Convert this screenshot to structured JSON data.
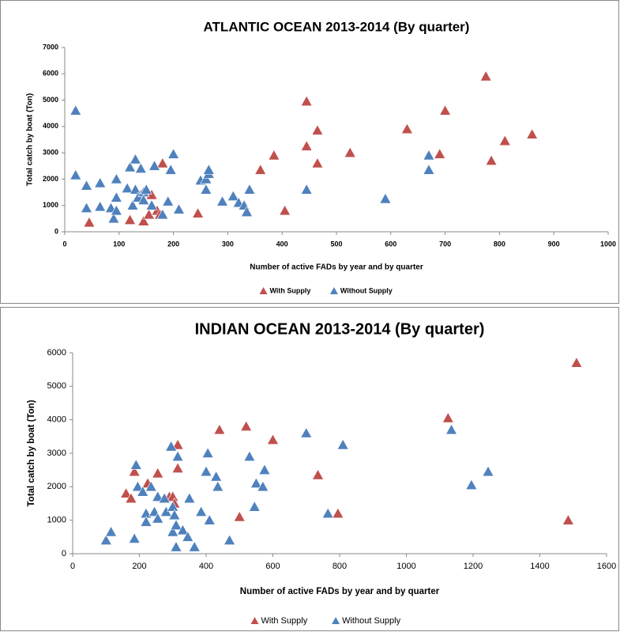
{
  "chart_data": [
    {
      "type": "scatter",
      "title": "ATLANTIC OCEAN 2013-2014 (By quarter)",
      "x_label": "Number of active FADs by year and by quarter",
      "y_label": "Total catch by boat (Ton)",
      "xlim": [
        0,
        1000
      ],
      "xticks": [
        0,
        100,
        200,
        300,
        400,
        500,
        600,
        700,
        800,
        900,
        1000
      ],
      "ylim": [
        0,
        7000
      ],
      "yticks": [
        0,
        1000,
        2000,
        3000,
        4000,
        5000,
        6000,
        7000
      ],
      "grid": false,
      "legend": "bottom",
      "series": [
        {
          "name": "With Supply",
          "color": "#c0504d",
          "x": [
            45,
            120,
            140,
            145,
            150,
            155,
            160,
            170,
            175,
            180,
            245,
            360,
            385,
            405,
            445,
            445,
            465,
            465,
            525,
            630,
            690,
            700,
            775,
            785,
            810,
            860
          ],
          "values": [
            350,
            450,
            1400,
            400,
            1500,
            650,
            1400,
            800,
            650,
            2600,
            700,
            2350,
            2900,
            800,
            4950,
            3250,
            3850,
            2600,
            3000,
            3900,
            2950,
            4600,
            5900,
            2700,
            3450,
            3700
          ]
        },
        {
          "name": "Without Supply",
          "color": "#4f81bd",
          "x": [
            20,
            20,
            40,
            40,
            65,
            65,
            85,
            90,
            95,
            95,
            95,
            115,
            120,
            125,
            130,
            130,
            135,
            140,
            145,
            145,
            150,
            160,
            165,
            180,
            190,
            195,
            200,
            210,
            250,
            260,
            260,
            265,
            265,
            290,
            310,
            320,
            330,
            335,
            340,
            445,
            590,
            670,
            670
          ],
          "values": [
            4600,
            2150,
            1750,
            900,
            1850,
            950,
            900,
            500,
            2000,
            1300,
            800,
            1650,
            2450,
            1000,
            2750,
            1600,
            1300,
            2400,
            1500,
            1200,
            1600,
            1000,
            2500,
            650,
            1150,
            2350,
            2950,
            850,
            1950,
            2000,
            1600,
            2200,
            2350,
            1150,
            1350,
            1100,
            1000,
            750,
            1600,
            1600,
            1250,
            2900,
            2350
          ]
        }
      ]
    },
    {
      "type": "scatter",
      "title": "INDIAN OCEAN 2013-2014 (By quarter)",
      "x_label": "Number of active FADs by year and by quarter",
      "y_label": "Total catch by boat (Ton)",
      "xlim": [
        0,
        1600
      ],
      "xticks": [
        0,
        200,
        400,
        600,
        800,
        1000,
        1200,
        1400,
        1600
      ],
      "ylim": [
        0,
        6000
      ],
      "yticks": [
        0,
        1000,
        2000,
        3000,
        4000,
        5000,
        6000
      ],
      "grid": false,
      "legend": "bottom",
      "series": [
        {
          "name": "With Supply",
          "color": "#c0504d",
          "x": [
            160,
            175,
            185,
            225,
            255,
            290,
            300,
            305,
            315,
            315,
            440,
            500,
            520,
            600,
            735,
            795,
            1125,
            1485,
            1510
          ],
          "values": [
            1800,
            1650,
            2450,
            2100,
            2400,
            1700,
            1700,
            1500,
            3250,
            2550,
            3700,
            1100,
            3800,
            3400,
            2350,
            1200,
            4050,
            1000,
            5700
          ]
        },
        {
          "name": "Without Supply",
          "color": "#4f81bd",
          "x": [
            100,
            115,
            185,
            190,
            195,
            210,
            220,
            220,
            235,
            245,
            255,
            255,
            275,
            280,
            295,
            300,
            305,
            300,
            310,
            315,
            310,
            330,
            345,
            350,
            365,
            385,
            400,
            405,
            410,
            430,
            435,
            470,
            530,
            545,
            550,
            570,
            575,
            700,
            765,
            810,
            1135,
            1195,
            1245
          ],
          "values": [
            400,
            650,
            450,
            2650,
            2000,
            1850,
            1200,
            950,
            2000,
            1250,
            1700,
            1050,
            1650,
            1250,
            3200,
            1400,
            1150,
            650,
            200,
            2900,
            850,
            700,
            500,
            1650,
            200,
            1250,
            2450,
            3000,
            1000,
            2300,
            2000,
            400,
            2900,
            1400,
            2100,
            2000,
            2500,
            3600,
            1200,
            3250,
            3700,
            2050,
            2450
          ]
        }
      ]
    }
  ]
}
